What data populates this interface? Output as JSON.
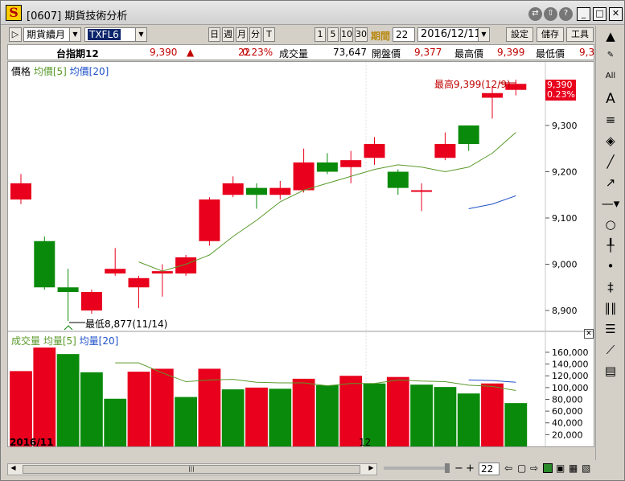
{
  "window": {
    "title": "[0607] 期貨技術分析",
    "logo": "S"
  },
  "toolbar": {
    "period_combo": "期貨續月",
    "symbol_combo": "TXFL6",
    "btn_day": "日",
    "btn_week": "週",
    "btn_month": "月",
    "btn_minute": "分",
    "btn_tick": "T",
    "btn_1": "1",
    "btn_5": "5",
    "btn_10": "10",
    "btn_30": "30",
    "period_label": "期間",
    "period_value": "22",
    "date_value": "2016/12/11",
    "settings_label": "設定",
    "save_label": "儲存",
    "tools_label": "工具"
  },
  "quote": {
    "name": "台指期12",
    "price": "9,390",
    "arrow": "▲",
    "change": "22",
    "pct": "0.23%",
    "vol_label": "成交量",
    "vol_value": "73,647",
    "open_label": "開盤價",
    "open_value": "9,377",
    "high_label": "最高價",
    "high_value": "9,399",
    "low_label": "最低價",
    "low_value": "9,3"
  },
  "price_panel": {
    "label": "價格",
    "ma5_label": "均價[5]",
    "ma20_label": "均價[20]",
    "high_annotation": "最高9,399(12/9)",
    "low_annotation": "最低8,877(11/14)",
    "last_price": "9,390",
    "last_pct": "0.23%"
  },
  "volume_panel": {
    "label": "成交量",
    "ma5_label": "均量[5]",
    "ma20_label": "均量[20]"
  },
  "x_labels": {
    "left": "2016/11",
    "mid": "12"
  },
  "bottom": {
    "period_value": "22"
  },
  "colors": {
    "up": "#e8001c",
    "down": "#0a8a0a",
    "ma5": "#5a9a2a",
    "ma20": "#1e50c8"
  },
  "chart_data": [
    {
      "type": "candlestick",
      "title": "價格",
      "series_names": [
        "均價[5]",
        "均價[20]"
      ],
      "candles": [
        {
          "o": 9140,
          "h": 9195,
          "l": 9130,
          "c": 9175
        },
        {
          "o": 9050,
          "h": 9060,
          "l": 8945,
          "c": 8950
        },
        {
          "o": 8950,
          "h": 8990,
          "l": 8877,
          "c": 8940
        },
        {
          "o": 8900,
          "h": 8945,
          "l": 8893,
          "c": 8940
        },
        {
          "o": 8980,
          "h": 9035,
          "l": 8975,
          "c": 8990
        },
        {
          "o": 8950,
          "h": 8975,
          "l": 8905,
          "c": 8970
        },
        {
          "o": 8980,
          "h": 9000,
          "l": 8930,
          "c": 8985
        },
        {
          "o": 8980,
          "h": 9020,
          "l": 8975,
          "c": 9015
        },
        {
          "o": 9050,
          "h": 9145,
          "l": 9040,
          "c": 9140
        },
        {
          "o": 9150,
          "h": 9190,
          "l": 9145,
          "c": 9175
        },
        {
          "o": 9165,
          "h": 9175,
          "l": 9120,
          "c": 9150
        },
        {
          "o": 9150,
          "h": 9180,
          "l": 9140,
          "c": 9165
        },
        {
          "o": 9160,
          "h": 9250,
          "l": 9155,
          "c": 9220
        },
        {
          "o": 9220,
          "h": 9240,
          "l": 9195,
          "c": 9200
        },
        {
          "o": 9210,
          "h": 9245,
          "l": 9175,
          "c": 9225
        },
        {
          "o": 9230,
          "h": 9275,
          "l": 9215,
          "c": 9260
        },
        {
          "o": 9200,
          "h": 9205,
          "l": 9150,
          "c": 9165
        },
        {
          "o": 9160,
          "h": 9175,
          "l": 9115,
          "c": 9160
        },
        {
          "o": 9230,
          "h": 9285,
          "l": 9225,
          "c": 9260
        },
        {
          "o": 9300,
          "h": 9300,
          "l": 9245,
          "c": 9260
        },
        {
          "o": 9360,
          "h": 9385,
          "l": 9315,
          "c": 9370
        },
        {
          "o": 9377,
          "h": 9399,
          "l": 9365,
          "c": 9390
        }
      ],
      "ma5": [
        null,
        null,
        null,
        null,
        null,
        9005,
        8985,
        9000,
        9020,
        9060,
        9095,
        9135,
        9160,
        9175,
        9190,
        9205,
        9215,
        9210,
        9200,
        9210,
        9240,
        9285
      ],
      "ma20": [
        null,
        null,
        null,
        null,
        null,
        null,
        null,
        null,
        null,
        null,
        null,
        null,
        null,
        null,
        null,
        null,
        null,
        null,
        null,
        9120,
        9130,
        9148
      ],
      "ylim": [
        8860,
        9420
      ],
      "y_ticks": [
        8900,
        9000,
        9100,
        9200,
        9300
      ]
    },
    {
      "type": "bar",
      "title": "成交量",
      "series_names": [
        "均量[5]",
        "均量[20]"
      ],
      "values": [
        128000,
        168000,
        157000,
        126000,
        81000,
        127000,
        132000,
        84000,
        132000,
        97000,
        100000,
        98000,
        115000,
        104000,
        120000,
        107000,
        118000,
        105000,
        101000,
        90000,
        107000,
        73647
      ],
      "up": [
        true,
        true,
        false,
        false,
        false,
        true,
        true,
        false,
        true,
        false,
        true,
        false,
        true,
        false,
        true,
        false,
        true,
        false,
        false,
        false,
        true,
        false
      ],
      "ma5": [
        null,
        null,
        null,
        null,
        142000,
        142000,
        125000,
        110000,
        113000,
        114000,
        109000,
        108000,
        108000,
        103000,
        107000,
        107000,
        113000,
        111000,
        110000,
        104000,
        102000,
        95000
      ],
      "ma20": [
        null,
        null,
        null,
        null,
        null,
        null,
        null,
        null,
        null,
        null,
        null,
        null,
        null,
        null,
        null,
        null,
        null,
        null,
        null,
        113000,
        112000,
        109000
      ],
      "ylim": [
        0,
        175000
      ],
      "y_ticks": [
        20000,
        40000,
        60000,
        80000,
        100000,
        120000,
        140000,
        160000
      ]
    }
  ]
}
